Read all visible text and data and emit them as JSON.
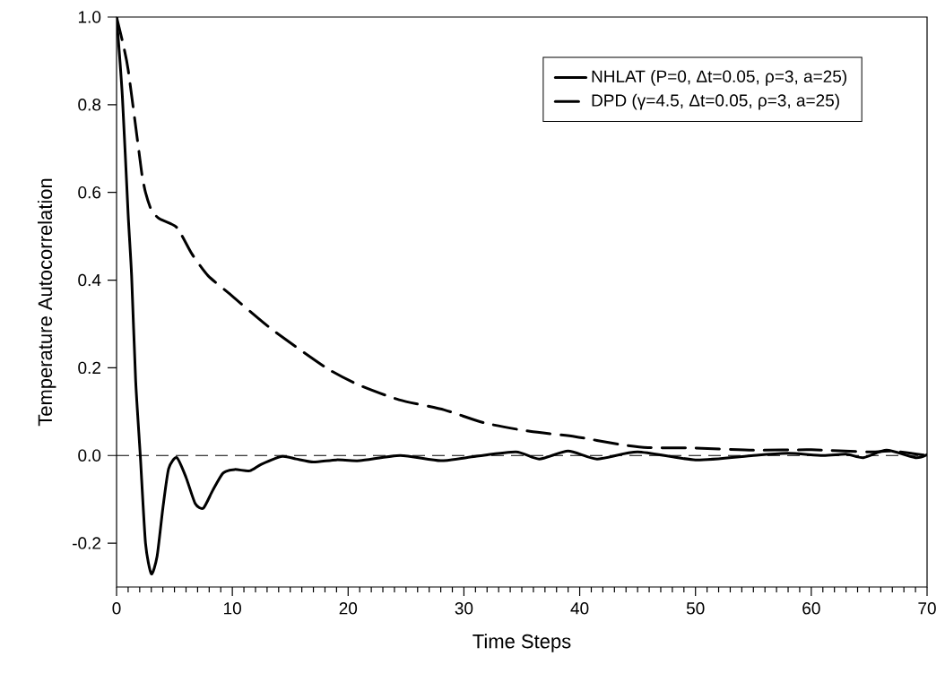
{
  "chart_data": {
    "type": "line",
    "xlabel": "Time Steps",
    "ylabel": "Temperature Autocorrelation",
    "xlim": [
      0,
      70
    ],
    "ylim": [
      -0.3,
      1.0
    ],
    "xticks": [
      0,
      10,
      20,
      30,
      40,
      50,
      60,
      70
    ],
    "yticks": [
      {
        "value": -0.2,
        "label": "-0.2"
      },
      {
        "value": 0,
        "label": "0.0"
      },
      {
        "value": 0.2,
        "label": "0.2"
      },
      {
        "value": 0.4,
        "label": "0.4"
      },
      {
        "value": 0.6,
        "label": "0.6"
      },
      {
        "value": 0.8,
        "label": "0.8"
      },
      {
        "value": 1.0,
        "label": "1.0"
      }
    ],
    "grid": false,
    "legend": "top right",
    "marker": "none",
    "ref_lines": [
      {
        "axis": "y",
        "value": 0,
        "line_style": "dashed",
        "color": "#000000"
      }
    ],
    "series": [
      {
        "name": "NHLAT (P=0, Δt=0.05, ρ=3, a=25)",
        "color": "#000000",
        "line_style": "solid",
        "x": [
          0,
          0.5,
          1.0,
          1.3,
          1.65,
          2.05,
          2.5,
          3.0,
          3.5,
          4.0,
          4.5,
          5.2,
          6.0,
          6.8,
          7.5,
          8.3,
          9.2,
          10.2,
          11.5,
          12.5,
          14.3,
          15.5,
          17,
          19,
          21,
          24.5,
          28,
          31,
          34.5,
          36.5,
          39,
          41.5,
          45,
          50,
          55,
          58,
          61,
          63,
          64.5,
          66.5,
          69,
          70
        ],
        "values": [
          1.0,
          0.82,
          0.55,
          0.41,
          0.17,
          0.0,
          -0.2,
          -0.27,
          -0.23,
          -0.12,
          -0.03,
          -0.005,
          -0.05,
          -0.11,
          -0.12,
          -0.08,
          -0.04,
          -0.032,
          -0.035,
          -0.02,
          -0.002,
          -0.008,
          -0.015,
          -0.01,
          -0.012,
          0.0,
          -0.012,
          -0.002,
          0.008,
          -0.008,
          0.01,
          -0.008,
          0.008,
          -0.01,
          0.0,
          0.005,
          0.0,
          0.003,
          -0.005,
          0.012,
          -0.005,
          0.002
        ]
      },
      {
        "name": "DPD (γ=4.5, Δt=0.05, ρ=3, a=25)",
        "color": "#000000",
        "line_style": "dashed",
        "x": [
          0,
          0.55,
          1.0,
          1.9,
          2.2,
          2.5,
          3.0,
          3.7,
          5.2,
          6.5,
          7.9,
          9.7,
          13.3,
          18.1,
          21,
          24.4,
          28.3,
          31.8,
          35.7,
          39.6,
          43.5,
          45.9,
          50,
          55,
          60,
          65,
          67,
          70
        ],
        "values": [
          1.0,
          0.94,
          0.88,
          0.7,
          0.64,
          0.6,
          0.56,
          0.54,
          0.52,
          0.46,
          0.41,
          0.37,
          0.29,
          0.2,
          0.16,
          0.127,
          0.104,
          0.074,
          0.055,
          0.043,
          0.025,
          0.018,
          0.017,
          0.012,
          0.013,
          0.008,
          0.01,
          0.0
        ]
      }
    ]
  }
}
